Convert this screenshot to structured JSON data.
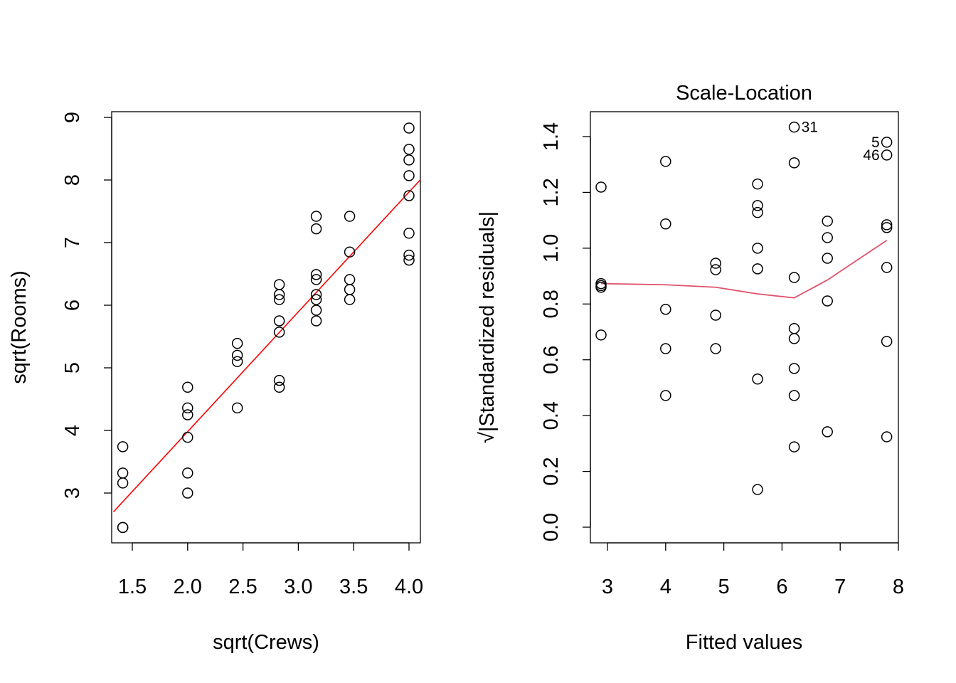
{
  "chart_data": [
    {
      "type": "scatter",
      "xlabel": "sqrt(Crews)",
      "ylabel": "sqrt(Rooms)",
      "xlim": [
        1.33,
        4.1
      ],
      "ylim": [
        2.2,
        9.1
      ],
      "xticks": [
        "1.5",
        "2.0",
        "2.5",
        "3.0",
        "3.5",
        "4.0"
      ],
      "yticks": [
        "3",
        "4",
        "5",
        "6",
        "7",
        "8",
        "9"
      ],
      "points": [
        [
          1.414,
          3.74
        ],
        [
          1.414,
          3.32
        ],
        [
          1.414,
          3.16
        ],
        [
          1.414,
          2.45
        ],
        [
          1.414,
          2.45
        ],
        [
          2,
          4.69
        ],
        [
          2,
          4.36
        ],
        [
          2,
          4.25
        ],
        [
          2,
          3.89
        ],
        [
          2,
          3.32
        ],
        [
          2,
          3.0
        ],
        [
          2.449,
          5.39
        ],
        [
          2.449,
          5.2
        ],
        [
          2.449,
          5.1
        ],
        [
          2.449,
          4.36
        ],
        [
          2.828,
          6.33
        ],
        [
          2.828,
          6.17
        ],
        [
          2.828,
          6.09
        ],
        [
          2.828,
          5.75
        ],
        [
          2.828,
          5.57
        ],
        [
          2.828,
          4.8
        ],
        [
          2.828,
          4.69
        ],
        [
          3.162,
          7.42
        ],
        [
          3.162,
          7.22
        ],
        [
          3.162,
          6.49
        ],
        [
          3.162,
          6.41
        ],
        [
          3.162,
          6.17
        ],
        [
          3.162,
          6.09
        ],
        [
          3.162,
          5.92
        ],
        [
          3.162,
          5.75
        ],
        [
          3.464,
          7.42
        ],
        [
          3.464,
          6.85
        ],
        [
          3.464,
          6.41
        ],
        [
          3.464,
          6.25
        ],
        [
          3.464,
          6.09
        ],
        [
          4,
          8.83
        ],
        [
          4,
          8.49
        ],
        [
          4,
          8.32
        ],
        [
          4,
          8.07
        ],
        [
          4,
          7.75
        ],
        [
          4,
          7.15
        ],
        [
          4,
          6.8
        ],
        [
          4,
          6.72
        ]
      ],
      "fit_line": {
        "intercept": 0.155,
        "slope": 1.913,
        "color": "#ff0000"
      }
    },
    {
      "type": "scatter",
      "title": "Scale-Location",
      "xlabel": "Fitted values",
      "ylabel": "√|Standardized residuals|",
      "xlim": [
        2.7,
        8.0
      ],
      "ylim": [
        -0.05,
        1.48
      ],
      "xticks": [
        "3",
        "4",
        "5",
        "6",
        "7",
        "8"
      ],
      "yticks": [
        "0.0",
        "0.2",
        "0.4",
        "0.6",
        "0.8",
        "1.0",
        "1.2",
        "1.4"
      ],
      "points": [
        [
          2.89,
          1.219
        ],
        [
          2.89,
          0.873
        ],
        [
          2.89,
          0.866
        ],
        [
          2.89,
          0.86
        ],
        [
          2.89,
          0.689
        ],
        [
          4.0,
          1.311
        ],
        [
          4.0,
          1.087
        ],
        [
          4.0,
          0.781
        ],
        [
          4.0,
          0.64
        ],
        [
          4.0,
          0.472
        ],
        [
          4.86,
          0.946
        ],
        [
          4.86,
          0.923
        ],
        [
          4.86,
          0.76
        ],
        [
          4.86,
          0.64
        ],
        [
          5.58,
          1.23
        ],
        [
          5.58,
          1.153
        ],
        [
          5.58,
          1.128
        ],
        [
          5.58,
          1.0
        ],
        [
          5.58,
          0.926
        ],
        [
          5.58,
          0.531
        ],
        [
          5.58,
          0.135
        ],
        [
          6.21,
          1.434
        ],
        [
          6.21,
          1.306
        ],
        [
          6.21,
          0.895
        ],
        [
          6.21,
          0.712
        ],
        [
          6.21,
          0.676
        ],
        [
          6.21,
          0.569
        ],
        [
          6.21,
          0.472
        ],
        [
          6.21,
          0.288
        ],
        [
          6.78,
          1.097
        ],
        [
          6.78,
          1.038
        ],
        [
          6.78,
          0.964
        ],
        [
          6.78,
          0.811
        ],
        [
          6.78,
          0.342
        ],
        [
          7.8,
          1.38
        ],
        [
          7.8,
          1.334
        ],
        [
          7.8,
          1.084
        ],
        [
          7.8,
          1.074
        ],
        [
          7.8,
          0.931
        ],
        [
          7.8,
          0.666
        ],
        [
          7.8,
          0.324
        ]
      ],
      "point_labels": [
        {
          "text": "31",
          "x": 6.21,
          "y": 1.434,
          "side": "right"
        },
        {
          "text": "5",
          "x": 7.8,
          "y": 1.38,
          "side": "left"
        },
        {
          "text": "46",
          "x": 7.8,
          "y": 1.334,
          "side": "left"
        }
      ],
      "smooth": {
        "x": [
          2.89,
          4.0,
          4.86,
          5.58,
          6.21,
          6.78,
          7.8
        ],
        "y": [
          0.873,
          0.869,
          0.86,
          0.836,
          0.822,
          0.886,
          1.028
        ],
        "color": "#df536b"
      }
    }
  ]
}
